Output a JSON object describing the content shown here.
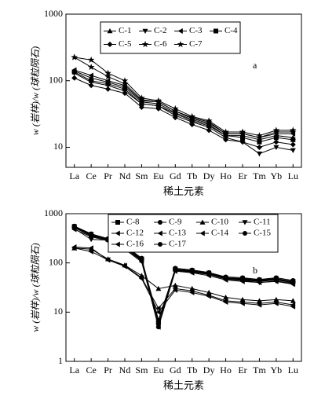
{
  "chart_data": [
    {
      "type": "line",
      "annotation": "a",
      "ylabel": "w (岩样)/w (球粒陨石)",
      "xlabel": "稀土元素",
      "log_y": true,
      "categories": [
        "La",
        "Ce",
        "Pr",
        "Nd",
        "Sm",
        "Eu",
        "Gd",
        "Tb",
        "Dy",
        "Ho",
        "Er",
        "Tm",
        "Yb",
        "Lu"
      ],
      "ylim": [
        5,
        1000
      ],
      "yticks": [
        10,
        100,
        1000
      ],
      "legend": "top",
      "series": [
        {
          "name": "C-1",
          "color": "#000",
          "marker": "tri-up",
          "values": [
            140,
            110,
            95,
            80,
            48,
            45,
            33,
            26,
            22,
            15,
            15,
            13,
            15,
            14
          ]
        },
        {
          "name": "C-2",
          "color": "#000",
          "marker": "tri-down",
          "values": [
            130,
            95,
            85,
            70,
            45,
            42,
            30,
            24,
            20,
            14,
            12,
            8,
            10,
            9
          ]
        },
        {
          "name": "C-3",
          "color": "#000",
          "marker": "tri-left",
          "values": [
            145,
            120,
            100,
            85,
            50,
            48,
            35,
            27,
            23,
            16,
            16,
            14,
            16,
            16
          ]
        },
        {
          "name": "C-4",
          "color": "#000",
          "marker": "square",
          "values": [
            135,
            100,
            90,
            75,
            45,
            42,
            32,
            25,
            21,
            15,
            14,
            12,
            14,
            13
          ]
        },
        {
          "name": "C-5",
          "color": "#000",
          "marker": "diamond",
          "values": [
            110,
            85,
            75,
            65,
            40,
            38,
            28,
            22,
            18,
            13,
            12,
            10,
            12,
            11
          ]
        },
        {
          "name": "C-6",
          "color": "#000",
          "marker": "star",
          "values": [
            225,
            160,
            115,
            90,
            52,
            48,
            35,
            28,
            24,
            16,
            16,
            14,
            17,
            17
          ]
        },
        {
          "name": "C-7",
          "color": "#000",
          "marker": "star",
          "values": [
            225,
            205,
            130,
            100,
            55,
            50,
            38,
            29,
            25,
            17,
            17,
            15,
            18,
            18
          ]
        }
      ]
    },
    {
      "type": "line",
      "annotation": "b",
      "ylabel": "w (岩样)/w (球粒陨石)",
      "xlabel": "稀土元素",
      "log_y": true,
      "categories": [
        "La",
        "Ce",
        "Pr",
        "Nd",
        "Sm",
        "Eu",
        "Gd",
        "Tb",
        "Dy",
        "Ho",
        "Er",
        "Tm",
        "Yb",
        "Lu"
      ],
      "ylim": [
        1,
        1000
      ],
      "yticks": [
        1,
        10,
        100,
        1000
      ],
      "legend": "top",
      "series": [
        {
          "name": "C-8",
          "color": "#000",
          "marker": "square",
          "values": [
            550,
            380,
            300,
            220,
            120,
            6,
            75,
            70,
            62,
            50,
            48,
            45,
            48,
            42
          ]
        },
        {
          "name": "C-9",
          "color": "#000",
          "marker": "circle",
          "values": [
            520,
            360,
            290,
            210,
            115,
            5,
            72,
            68,
            60,
            48,
            45,
            42,
            45,
            40
          ]
        },
        {
          "name": "C-10",
          "color": "#000",
          "marker": "tri-up",
          "values": [
            200,
            190,
            120,
            90,
            55,
            30,
            35,
            30,
            25,
            20,
            18,
            17,
            18,
            17
          ]
        },
        {
          "name": "C-11",
          "color": "#000",
          "marker": "tri-down",
          "values": [
            500,
            300,
            290,
            200,
            110,
            6,
            70,
            65,
            58,
            47,
            44,
            40,
            43,
            38
          ]
        },
        {
          "name": "C-12",
          "color": "#000",
          "marker": "tri-left",
          "values": [
            540,
            370,
            300,
            215,
            118,
            7,
            74,
            69,
            61,
            49,
            47,
            44,
            47,
            41
          ]
        },
        {
          "name": "C-13",
          "color": "#000",
          "marker": "tri-left",
          "values": [
            210,
            200,
            115,
            88,
            50,
            12,
            30,
            27,
            22,
            17,
            16,
            15,
            16,
            14
          ]
        },
        {
          "name": "C-14",
          "color": "#000",
          "marker": "tri-left",
          "values": [
            480,
            340,
            280,
            190,
            105,
            5,
            68,
            63,
            55,
            45,
            42,
            40,
            42,
            37
          ]
        },
        {
          "name": "C-15",
          "color": "#000",
          "marker": "circle",
          "values": [
            560,
            390,
            310,
            225,
            125,
            6,
            78,
            72,
            64,
            52,
            50,
            46,
            50,
            44
          ]
        },
        {
          "name": "C-16",
          "color": "#000",
          "marker": "tri-left",
          "values": [
            200,
            170,
            115,
            85,
            48,
            10,
            28,
            25,
            21,
            16,
            15,
            14,
            15,
            13
          ]
        },
        {
          "name": "C-17",
          "color": "#000",
          "marker": "circle",
          "values": [
            520,
            350,
            295,
            205,
            112,
            6,
            73,
            66,
            59,
            48,
            46,
            43,
            46,
            39
          ]
        }
      ]
    }
  ]
}
